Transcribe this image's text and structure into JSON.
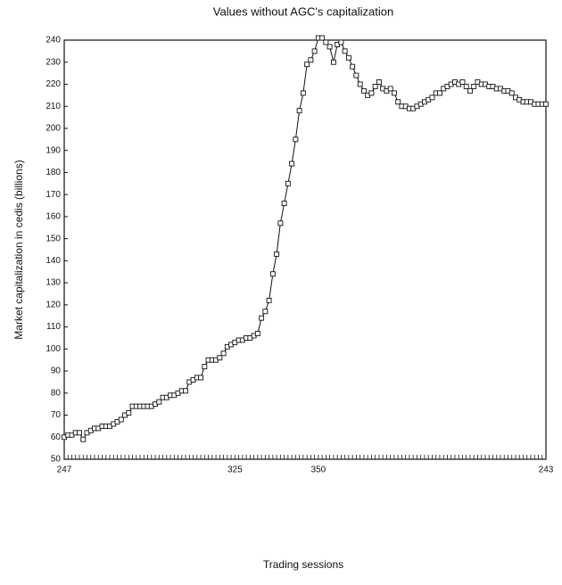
{
  "chart_data": {
    "type": "line",
    "title": "Values without AGC's capitalization",
    "x_label": "Trading sessions",
    "y_label": "Market capitalization in cedis (billions)",
    "categories": [
      "247",
      null,
      null,
      null,
      null,
      null,
      null,
      null,
      null,
      null,
      null,
      null,
      null,
      null,
      null,
      null,
      null,
      null,
      null,
      null,
      null,
      null,
      null,
      null,
      null,
      null,
      null,
      null,
      null,
      null,
      null,
      null,
      null,
      null,
      null,
      null,
      null,
      null,
      null,
      null,
      null,
      null,
      null,
      null,
      null,
      "325",
      null,
      null,
      null,
      null,
      null,
      null,
      null,
      null,
      null,
      null,
      null,
      null,
      null,
      null,
      null,
      null,
      null,
      null,
      null,
      null,
      null,
      "350",
      null,
      null,
      null,
      null,
      null,
      null,
      null,
      null,
      null,
      null,
      null,
      null,
      null,
      null,
      null,
      null,
      null,
      null,
      null,
      null,
      null,
      null,
      null,
      null,
      null,
      null,
      null,
      null,
      null,
      null,
      null,
      null,
      null,
      null,
      null,
      null,
      null,
      null,
      null,
      null,
      null,
      null,
      null,
      null,
      null,
      null,
      null,
      null,
      null,
      null,
      null,
      null,
      null,
      null,
      null,
      null,
      null,
      null,
      null,
      "243"
    ],
    "values": [
      60,
      61,
      61,
      62,
      62,
      59,
      62,
      63,
      64,
      64,
      65,
      65,
      65,
      66,
      67,
      68,
      70,
      71,
      74,
      74,
      74,
      74,
      74,
      74,
      75,
      76,
      78,
      78,
      79,
      79,
      80,
      81,
      81,
      85,
      86,
      87,
      87,
      92,
      95,
      95,
      95,
      96,
      98,
      101,
      102,
      103,
      104,
      104,
      105,
      105,
      106,
      107,
      114,
      117,
      122,
      134,
      143,
      157,
      166,
      175,
      184,
      195,
      208,
      216,
      229,
      231,
      235,
      241,
      241,
      239,
      237,
      230,
      238,
      239,
      235,
      232,
      228,
      224,
      220,
      217,
      215,
      216,
      219,
      221,
      218,
      217,
      218,
      216,
      212,
      210,
      210,
      209,
      209,
      210,
      211,
      212,
      213,
      214,
      216,
      216,
      218,
      219,
      220,
      221,
      220,
      221,
      219,
      217,
      219,
      221,
      220,
      220,
      219,
      219,
      218,
      218,
      217,
      217,
      216,
      214,
      213,
      212,
      212,
      212,
      211,
      211,
      211,
      211
    ],
    "color": "#111111",
    "marker": "square",
    "ylim": [
      50,
      240
    ],
    "yticks": [
      50,
      60,
      70,
      80,
      90,
      100,
      110,
      120,
      130,
      140,
      150,
      160,
      170,
      180,
      190,
      200,
      210,
      220,
      230,
      240
    ]
  }
}
